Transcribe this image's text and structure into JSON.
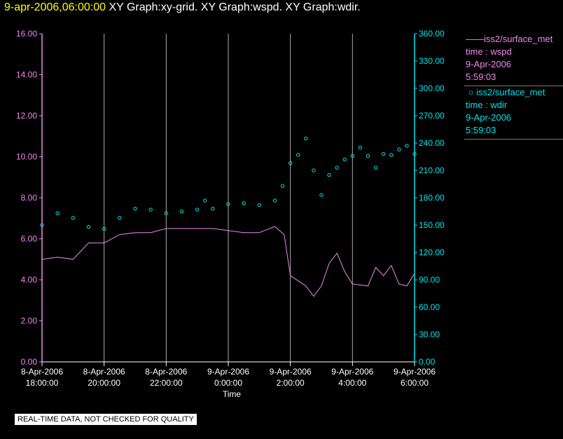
{
  "header": {
    "timestamp": "9-apr-2006,06:00:00",
    "graphs": "XY Graph:xy-grid.  XY Graph:wspd.  XY Graph:wdir."
  },
  "colors": {
    "wspd": "#ee88ee",
    "wdir": "#00e5ee",
    "grid": "#aaaaaa",
    "timestamp": "#ffff00"
  },
  "legend": [
    {
      "symbol": "line",
      "source": "iss2/surface_met",
      "var": "time : wspd",
      "date": "9-Apr-2006",
      "time": "5:59:03"
    },
    {
      "symbol": "circle",
      "source": "iss2/surface_met",
      "var": "time : wdir",
      "date": "9-Apr-2006",
      "time": "5:59:03"
    }
  ],
  "notice": "REAL-TIME DATA, NOT CHECKED FOR QUALITY",
  "chart_data": {
    "type": "line",
    "xlabel": "Time",
    "x_ticks": [
      {
        "hour": 0,
        "date": "8-Apr-2006",
        "time": "18:00:00"
      },
      {
        "hour": 2,
        "date": "8-Apr-2006",
        "time": "20:00:00"
      },
      {
        "hour": 4,
        "date": "8-Apr-2006",
        "time": "22:00:00"
      },
      {
        "hour": 6,
        "date": "9-Apr-2006",
        "time": "0:00:00"
      },
      {
        "hour": 8,
        "date": "9-Apr-2006",
        "time": "2:00:00"
      },
      {
        "hour": 10,
        "date": "9-Apr-2006",
        "time": "4:00:00"
      },
      {
        "hour": 12,
        "date": "9-Apr-2006",
        "time": "6:00:00"
      }
    ],
    "xlim": [
      0,
      12
    ],
    "left_axis": {
      "ylim": [
        0,
        16
      ],
      "ticks": [
        "0.00",
        "2.00",
        "4.00",
        "6.00",
        "8.00",
        "10.00",
        "12.00",
        "14.00",
        "16.00"
      ]
    },
    "right_axis": {
      "ylim": [
        0,
        360
      ],
      "ticks": [
        "0.00",
        "30.00",
        "60.00",
        "90.00",
        "120.00",
        "150.00",
        "180.00",
        "210.00",
        "240.00",
        "270.00",
        "300.00",
        "330.00",
        "360.00"
      ]
    },
    "series": [
      {
        "name": "wspd",
        "axis": "left",
        "style": "line",
        "x": [
          0.0,
          0.5,
          1.0,
          1.5,
          2.0,
          2.5,
          3.0,
          3.5,
          4.0,
          4.5,
          5.0,
          5.5,
          6.0,
          6.5,
          7.0,
          7.5,
          7.8,
          8.0,
          8.5,
          8.75,
          9.0,
          9.25,
          9.5,
          9.75,
          10.0,
          10.5,
          10.75,
          11.0,
          11.25,
          11.5,
          11.75,
          12.0
        ],
        "values": [
          5.0,
          5.1,
          5.0,
          5.8,
          5.8,
          6.2,
          6.3,
          6.3,
          6.5,
          6.5,
          6.5,
          6.5,
          6.4,
          6.3,
          6.3,
          6.6,
          6.2,
          4.2,
          3.7,
          3.2,
          3.7,
          4.8,
          5.3,
          4.4,
          3.8,
          3.7,
          4.6,
          4.2,
          4.7,
          3.8,
          3.7,
          4.3
        ]
      },
      {
        "name": "wdir",
        "axis": "right",
        "style": "scatter",
        "x": [
          0.0,
          0.5,
          1.0,
          1.5,
          2.0,
          2.5,
          3.0,
          3.5,
          4.0,
          4.5,
          5.0,
          5.25,
          5.5,
          6.0,
          6.5,
          7.0,
          7.5,
          7.75,
          8.0,
          8.25,
          8.5,
          8.75,
          9.0,
          9.25,
          9.5,
          9.75,
          10.0,
          10.25,
          10.5,
          10.75,
          11.0,
          11.25,
          11.5,
          11.75,
          12.0
        ],
        "values": [
          150,
          163,
          158,
          148,
          146,
          158,
          168,
          167,
          163,
          165,
          167,
          177,
          168,
          173,
          174,
          172,
          177,
          193,
          218,
          227,
          245,
          210,
          183,
          205,
          213,
          222,
          226,
          235,
          226,
          213,
          228,
          227,
          233,
          237,
          228
        ]
      }
    ]
  }
}
